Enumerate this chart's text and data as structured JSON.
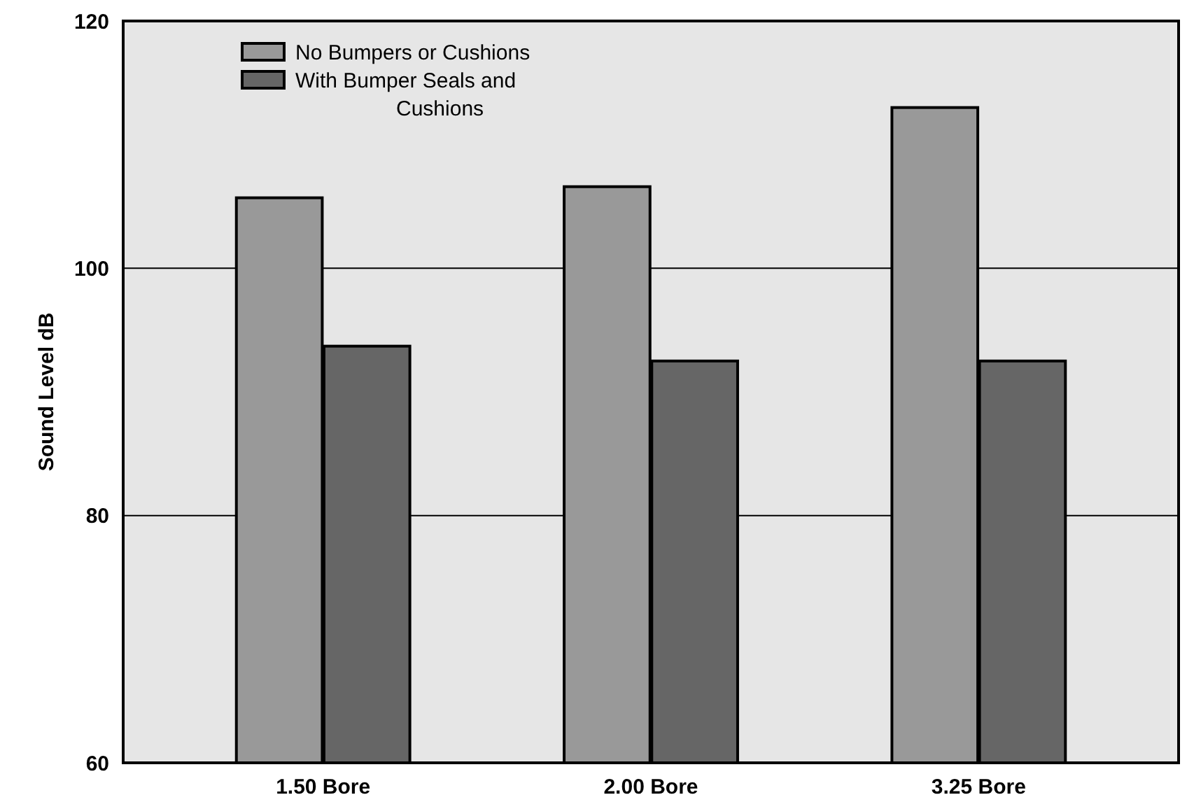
{
  "chart_data": {
    "type": "bar",
    "ylabel": "Sound Level dB",
    "categories": [
      "1.50 Bore",
      "2.00 Bore",
      "3.25 Bore"
    ],
    "series": [
      {
        "name": "No Bumpers or Cushions",
        "color": "#999999",
        "values": [
          105.7,
          106.6,
          113.0
        ]
      },
      {
        "name": "With Bumper Seals and Cushions",
        "color": "#666666",
        "values": [
          93.7,
          92.5,
          92.5
        ]
      }
    ],
    "ylim": [
      60,
      120
    ],
    "yticks": [
      60,
      80,
      100,
      120
    ],
    "grid": "y",
    "legend": "top left"
  }
}
